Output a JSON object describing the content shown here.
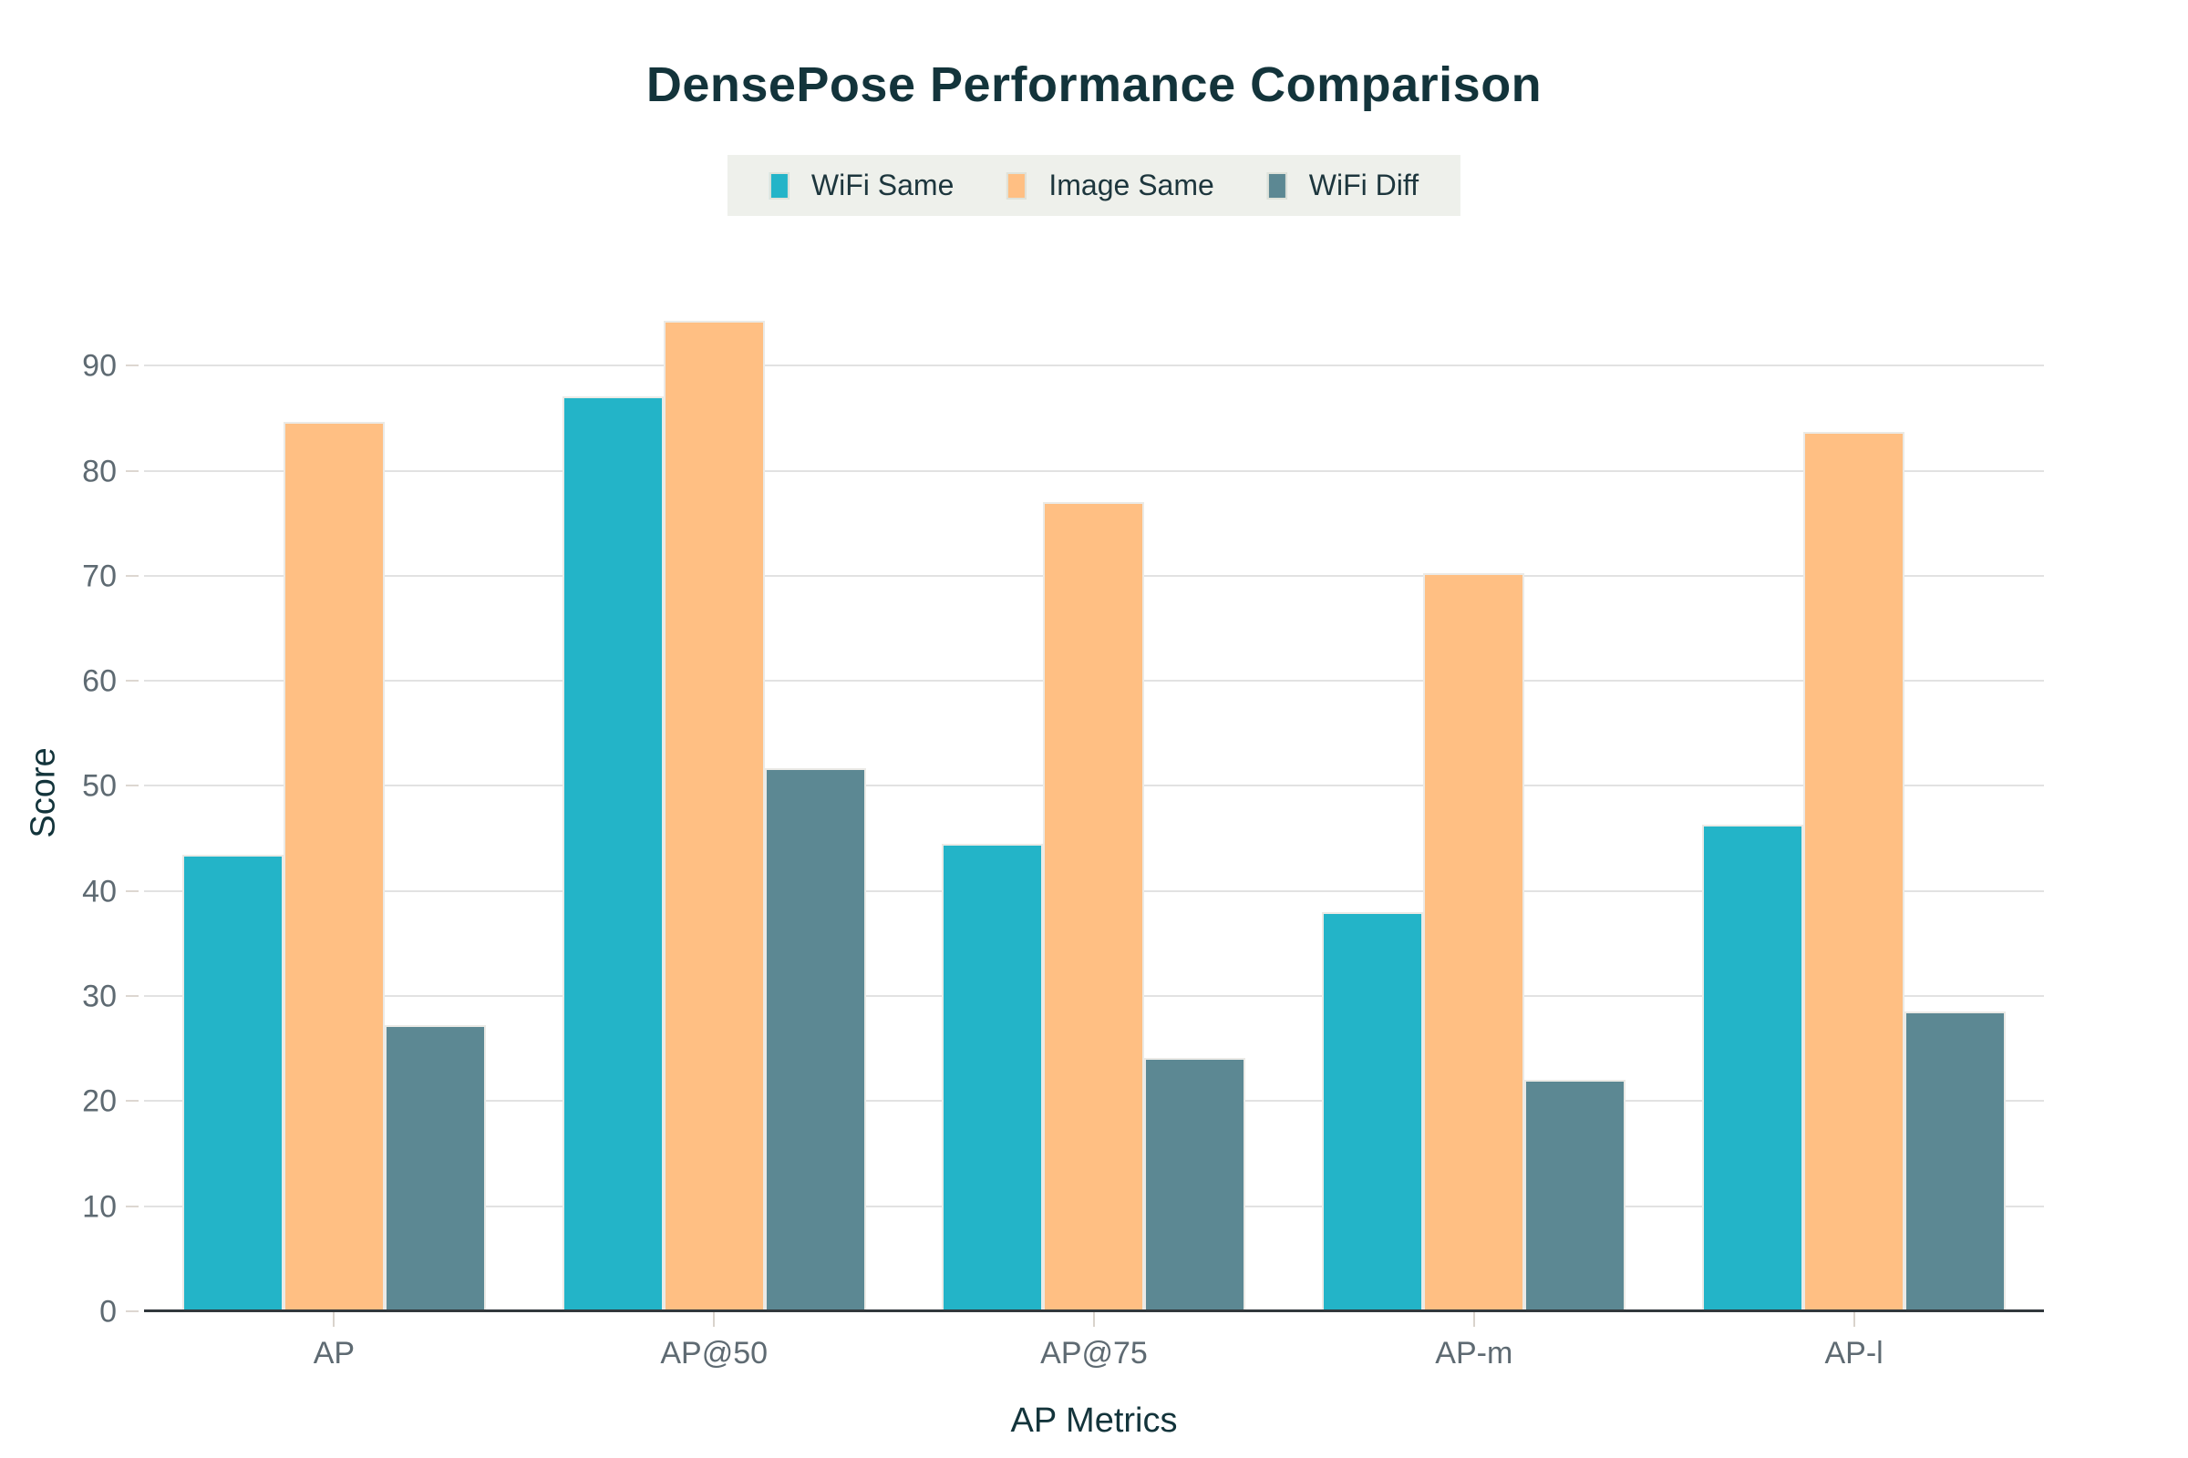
{
  "title": "DensePose Performance Comparison",
  "chart_data": {
    "type": "bar",
    "title": "DensePose Performance Comparison",
    "categories": [
      "AP",
      "AP@50",
      "AP@75",
      "AP-m",
      "AP-l"
    ],
    "series": [
      {
        "name": "WiFi Same",
        "color": "#23b4c8",
        "values": [
          43.5,
          87.2,
          44.6,
          38.1,
          46.4
        ]
      },
      {
        "name": "Image Same",
        "color": "#ffbf83",
        "values": [
          84.7,
          94.4,
          77.1,
          70.3,
          83.8
        ]
      },
      {
        "name": "WiFi Diff",
        "color": "#5c8893",
        "values": [
          27.3,
          51.8,
          24.2,
          22.1,
          28.6
        ]
      }
    ],
    "xlabel": "AP Metrics",
    "ylabel": "Score",
    "yticks": [
      0,
      10,
      20,
      30,
      40,
      50,
      60,
      70,
      80,
      90
    ],
    "ylim": [
      0,
      95.4
    ],
    "grid": true,
    "legend_position": "top-center"
  },
  "style": {
    "title_color": "#13343b",
    "tick_label_color": "#5e6a72",
    "gridline_color": "#e2e2e2",
    "baseline_color": "#31383c",
    "legend_background": "#eef0eb",
    "background": "#ffffff"
  }
}
